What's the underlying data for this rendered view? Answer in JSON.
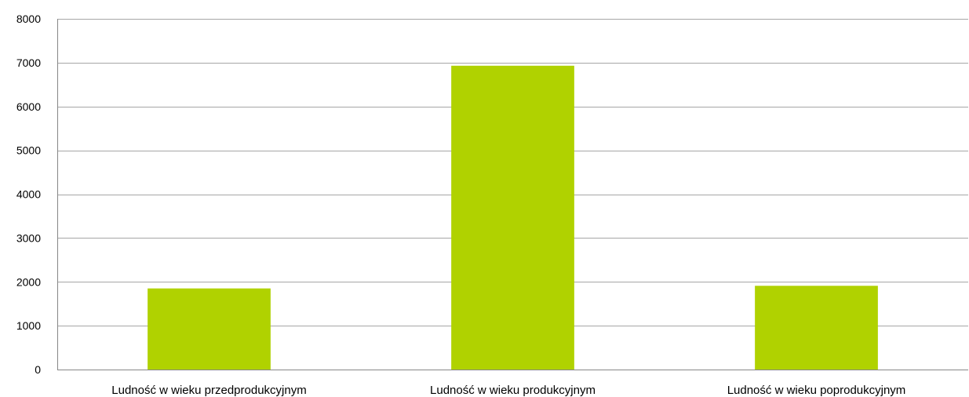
{
  "chart_data": {
    "type": "bar",
    "title": "",
    "xlabel": "",
    "ylabel": "",
    "categories": [
      "Ludność w wieku przedprodukcyjnym",
      "Ludność w wieku produkcyjnym",
      "Ludność w wieku poprodukcyjnym"
    ],
    "values": [
      1850,
      6930,
      1910
    ],
    "ylim": [
      0,
      8000
    ],
    "yticks": [
      "0",
      "1000",
      "2000",
      "3000",
      "4000",
      "5000",
      "6000",
      "7000",
      "8000"
    ],
    "grid": true,
    "legend": "none",
    "bar_color": "#b0d200",
    "grid_color": "#a6a6a6",
    "axis_color": "#868686"
  }
}
